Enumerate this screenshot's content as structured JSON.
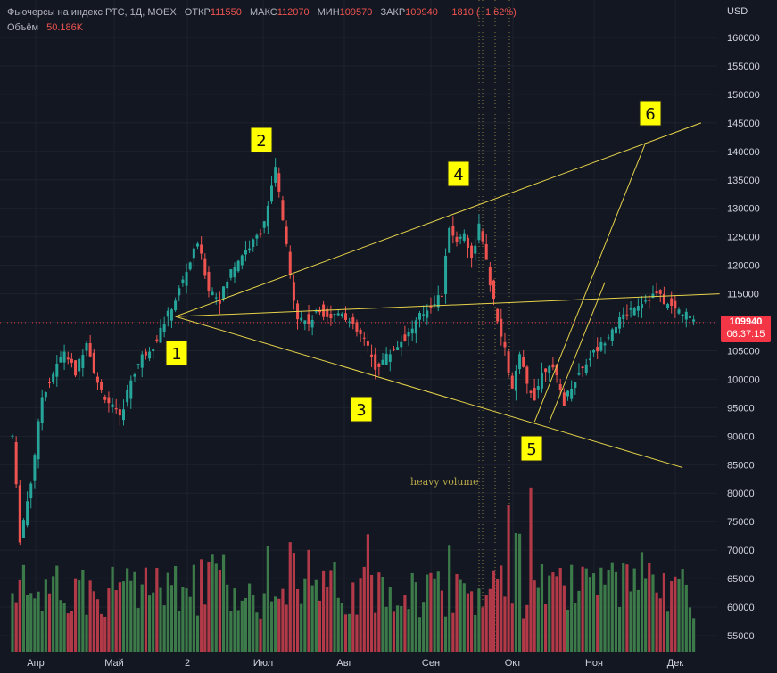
{
  "legend": {
    "title": "Фьючерсы на индекс РТС, 1Д, MOEX",
    "open_label": "ОТКР",
    "open": "111550",
    "high_label": "МАКС",
    "high": "112070",
    "low_label": "МИН",
    "low": "109570",
    "close_label": "ЗАКР",
    "close": "109940",
    "change": "−1810 (−1.62%)",
    "volume_label": "Объём",
    "volume": "50.186K"
  },
  "currency": "USD",
  "last_price": {
    "value": "109940",
    "countdown": "06:37:15"
  },
  "colors": {
    "up": "#26a69a",
    "down": "#ef5350",
    "vol_up": "#3d7a4a",
    "vol_down": "#b23a48",
    "drawing": "#e6d24a",
    "label_bg": "#ffff00",
    "background": "#131722",
    "grid": "#1e222d"
  },
  "annotation": "heavy volume",
  "chart_data": {
    "type": "candlestick",
    "x_labels": [
      "Апр",
      "Май",
      "2",
      "Июл",
      "Авг",
      "Сен",
      "Окт",
      "Ноя",
      "Дек"
    ],
    "y_ticks": [
      160000,
      155000,
      150000,
      145000,
      140000,
      135000,
      130000,
      125000,
      120000,
      115000,
      110000,
      105000,
      100000,
      95000,
      90000,
      85000,
      80000,
      75000,
      70000,
      65000,
      60000,
      55000
    ],
    "ylim": [
      53000,
      163000
    ],
    "wave_labels": [
      "1",
      "2",
      "3",
      "4",
      "5",
      "6"
    ],
    "close_path": [
      [
        0,
        90000
      ],
      [
        2,
        72000
      ],
      [
        5,
        82000
      ],
      [
        8,
        97000
      ],
      [
        11,
        101000
      ],
      [
        14,
        105000
      ],
      [
        17,
        101000
      ],
      [
        20,
        107000
      ],
      [
        23,
        99000
      ],
      [
        26,
        96000
      ],
      [
        29,
        93000
      ],
      [
        32,
        100000
      ],
      [
        35,
        104000
      ],
      [
        38,
        106000
      ],
      [
        41,
        110000
      ],
      [
        44,
        114000
      ],
      [
        47,
        119000
      ],
      [
        50,
        124000
      ],
      [
        53,
        116000
      ],
      [
        56,
        114000
      ],
      [
        59,
        119000
      ],
      [
        62,
        122000
      ],
      [
        65,
        124000
      ],
      [
        67,
        126000
      ],
      [
        69,
        130000
      ],
      [
        71,
        137000
      ],
      [
        73,
        128000
      ],
      [
        75,
        118000
      ],
      [
        77,
        111000
      ],
      [
        80,
        110000
      ],
      [
        83,
        112000
      ],
      [
        86,
        111000
      ],
      [
        89,
        112000
      ],
      [
        92,
        109000
      ],
      [
        95,
        107000
      ],
      [
        98,
        102000
      ],
      [
        101,
        104000
      ],
      [
        104,
        106000
      ],
      [
        107,
        108000
      ],
      [
        110,
        111000
      ],
      [
        113,
        113000
      ],
      [
        116,
        115000
      ],
      [
        118,
        127000
      ],
      [
        120,
        124000
      ],
      [
        122,
        126000
      ],
      [
        124,
        121000
      ],
      [
        126,
        127000
      ],
      [
        129,
        117000
      ],
      [
        131,
        110000
      ],
      [
        133,
        105000
      ],
      [
        135,
        98000
      ],
      [
        137,
        104000
      ],
      [
        139,
        99000
      ],
      [
        141,
        97000
      ],
      [
        143,
        101000
      ],
      [
        145,
        103000
      ],
      [
        147,
        100000
      ],
      [
        149,
        96000
      ],
      [
        151,
        99000
      ],
      [
        153,
        101000
      ],
      [
        156,
        104000
      ],
      [
        159,
        106000
      ],
      [
        162,
        109000
      ],
      [
        165,
        111000
      ],
      [
        168,
        113000
      ],
      [
        171,
        114000
      ],
      [
        174,
        115000
      ],
      [
        177,
        113000
      ],
      [
        180,
        112000
      ],
      [
        183,
        111000
      ],
      [
        184,
        109940
      ]
    ],
    "candles_count": 185,
    "volume_peaks": {
      "134": 78000,
      "136": 73000,
      "140": 81000
    }
  }
}
